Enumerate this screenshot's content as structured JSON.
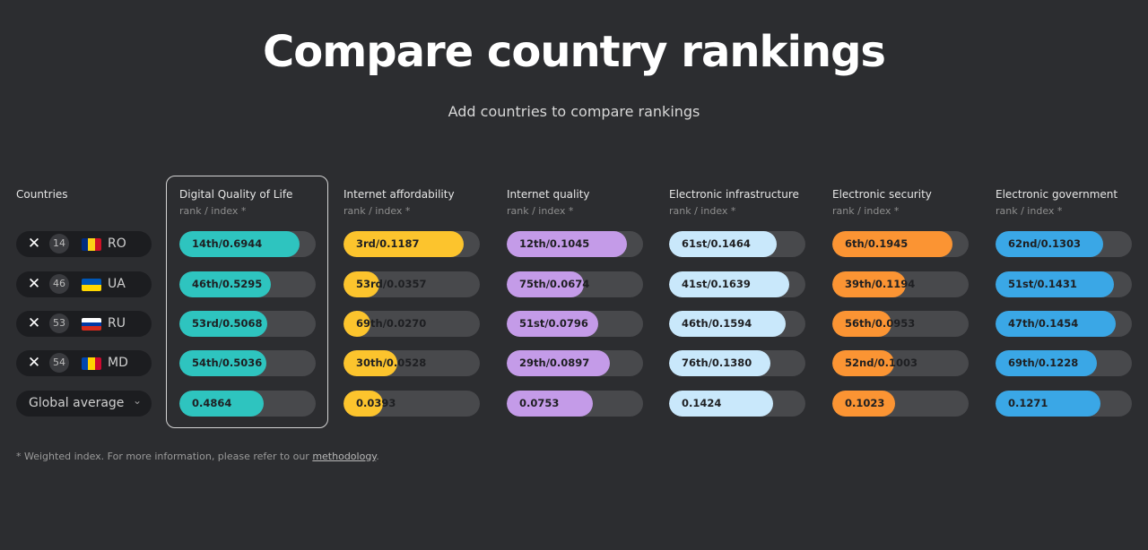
{
  "header": {
    "title": "Compare country rankings",
    "subtitle": "Add countries to compare rankings"
  },
  "countries_label": "Countries",
  "countries": [
    {
      "rank": "14",
      "code": "RO",
      "flag_colors": [
        "#002b7f",
        "#fcd116",
        "#ce1126"
      ],
      "flag_dir": "vertical"
    },
    {
      "rank": "46",
      "code": "UA",
      "flag_colors": [
        "#0057b7",
        "#ffd700"
      ],
      "flag_dir": "horizontal"
    },
    {
      "rank": "53",
      "code": "RU",
      "flag_colors": [
        "#ffffff",
        "#0039a6",
        "#d52b1e"
      ],
      "flag_dir": "horizontal"
    },
    {
      "rank": "54",
      "code": "MD",
      "flag_colors": [
        "#0046ae",
        "#ffd200",
        "#cc092f"
      ],
      "flag_dir": "vertical"
    }
  ],
  "average_select": {
    "label": "Global average",
    "chevron_icon": "chevron-down-icon"
  },
  "remove_icon": "close-icon",
  "columns": [
    {
      "name": "Digital Quality of Life",
      "sub": "rank / index *",
      "color": "#2ec4bf",
      "rows": [
        {
          "label": "14th/0.6944",
          "value": 0.6944
        },
        {
          "label": "46th/0.5295",
          "value": 0.5295
        },
        {
          "label": "53rd/0.5068",
          "value": 0.5068
        },
        {
          "label": "54th/0.5036",
          "value": 0.5036
        },
        {
          "label": "0.4864",
          "value": 0.4864
        }
      ]
    },
    {
      "name": "Internet affordability",
      "sub": "rank / index *",
      "color": "#fcc42d",
      "rows": [
        {
          "label": "3rd/0.1187",
          "value": 0.1187
        },
        {
          "label": "53rd/0.0357",
          "value": 0.0357
        },
        {
          "label": "69th/0.0270",
          "value": 0.027
        },
        {
          "label": "30th/0.0528",
          "value": 0.0528
        },
        {
          "label": "0.0393",
          "value": 0.0393
        }
      ]
    },
    {
      "name": "Internet quality",
      "sub": "rank / index *",
      "color": "#c49be8",
      "rows": [
        {
          "label": "12th/0.1045",
          "value": 0.1045
        },
        {
          "label": "75th/0.0674",
          "value": 0.0674
        },
        {
          "label": "51st/0.0796",
          "value": 0.0796
        },
        {
          "label": "29th/0.0897",
          "value": 0.0897
        },
        {
          "label": "0.0753",
          "value": 0.0753
        }
      ]
    },
    {
      "name": "Electronic infrastructure",
      "sub": "rank / index *",
      "color": "#c9e8fb",
      "rows": [
        {
          "label": "61st/0.1464",
          "value": 0.1464
        },
        {
          "label": "41st/0.1639",
          "value": 0.1639
        },
        {
          "label": "46th/0.1594",
          "value": 0.1594
        },
        {
          "label": "76th/0.1380",
          "value": 0.138
        },
        {
          "label": "0.1424",
          "value": 0.1424
        }
      ]
    },
    {
      "name": "Electronic security",
      "sub": "rank / index *",
      "color": "#fb9433",
      "rows": [
        {
          "label": "6th/0.1945",
          "value": 0.1945
        },
        {
          "label": "39th/0.1194",
          "value": 0.1194
        },
        {
          "label": "56th/0.0953",
          "value": 0.0953
        },
        {
          "label": "52nd/0.1003",
          "value": 0.1003
        },
        {
          "label": "0.1023",
          "value": 0.1023
        }
      ]
    },
    {
      "name": "Electronic government",
      "sub": "rank / index *",
      "color": "#3aa7e6",
      "rows": [
        {
          "label": "62nd/0.1303",
          "value": 0.1303
        },
        {
          "label": "51st/0.1431",
          "value": 0.1431
        },
        {
          "label": "47th/0.1454",
          "value": 0.1454
        },
        {
          "label": "69th/0.1228",
          "value": 0.1228
        },
        {
          "label": "0.1271",
          "value": 0.1271
        }
      ]
    }
  ],
  "footnote": {
    "text": "* Weighted index. For more information, please refer to our ",
    "link": "methodology",
    "end": "."
  }
}
